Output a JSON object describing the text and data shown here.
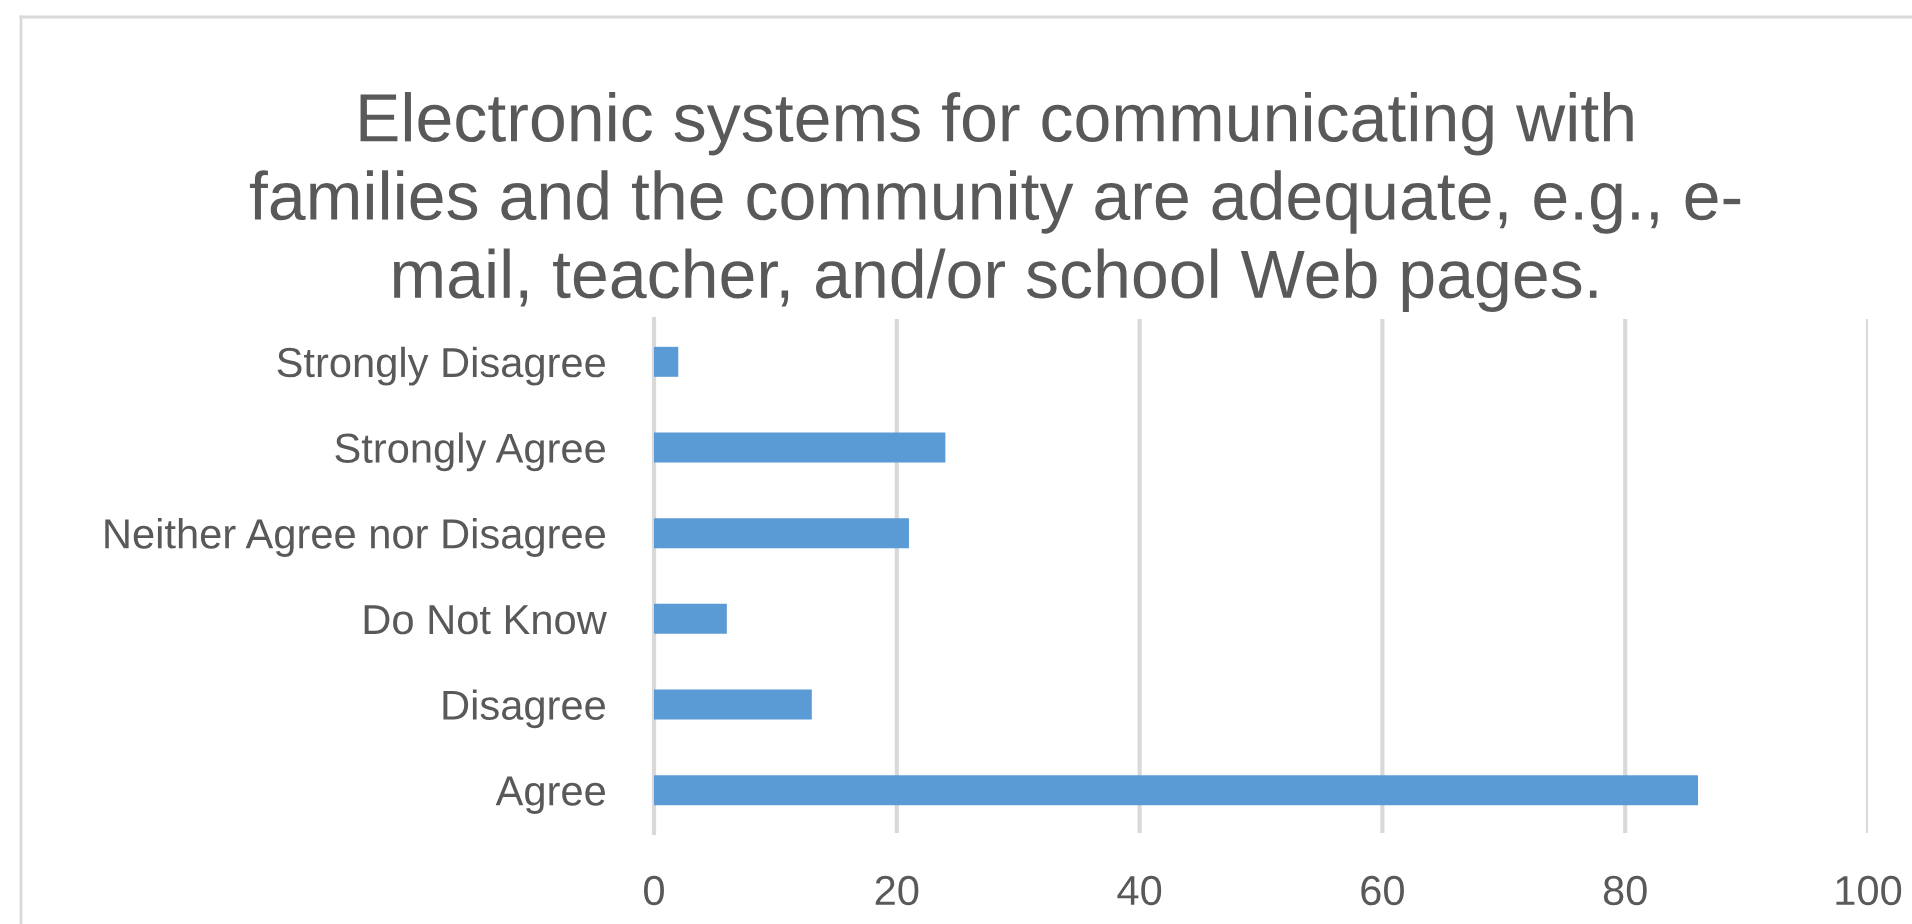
{
  "chart_data": {
    "type": "bar",
    "orientation": "horizontal",
    "title": "Electronic systems for communicating with\nfamilies and the community are adequate, e.g., e-\nmail, teacher, and/or school Web pages.",
    "categories": [
      "Strongly Disagree",
      "Strongly Agree",
      "Neither Agree nor Disagree",
      "Do Not Know",
      "Disagree",
      "Agree"
    ],
    "values": [
      2,
      24,
      21,
      6,
      13,
      86
    ],
    "color": "#5b9bd5",
    "xlim": [
      0,
      100
    ],
    "xticks": [
      0,
      20,
      40,
      60,
      80,
      100
    ],
    "grid": "x"
  }
}
